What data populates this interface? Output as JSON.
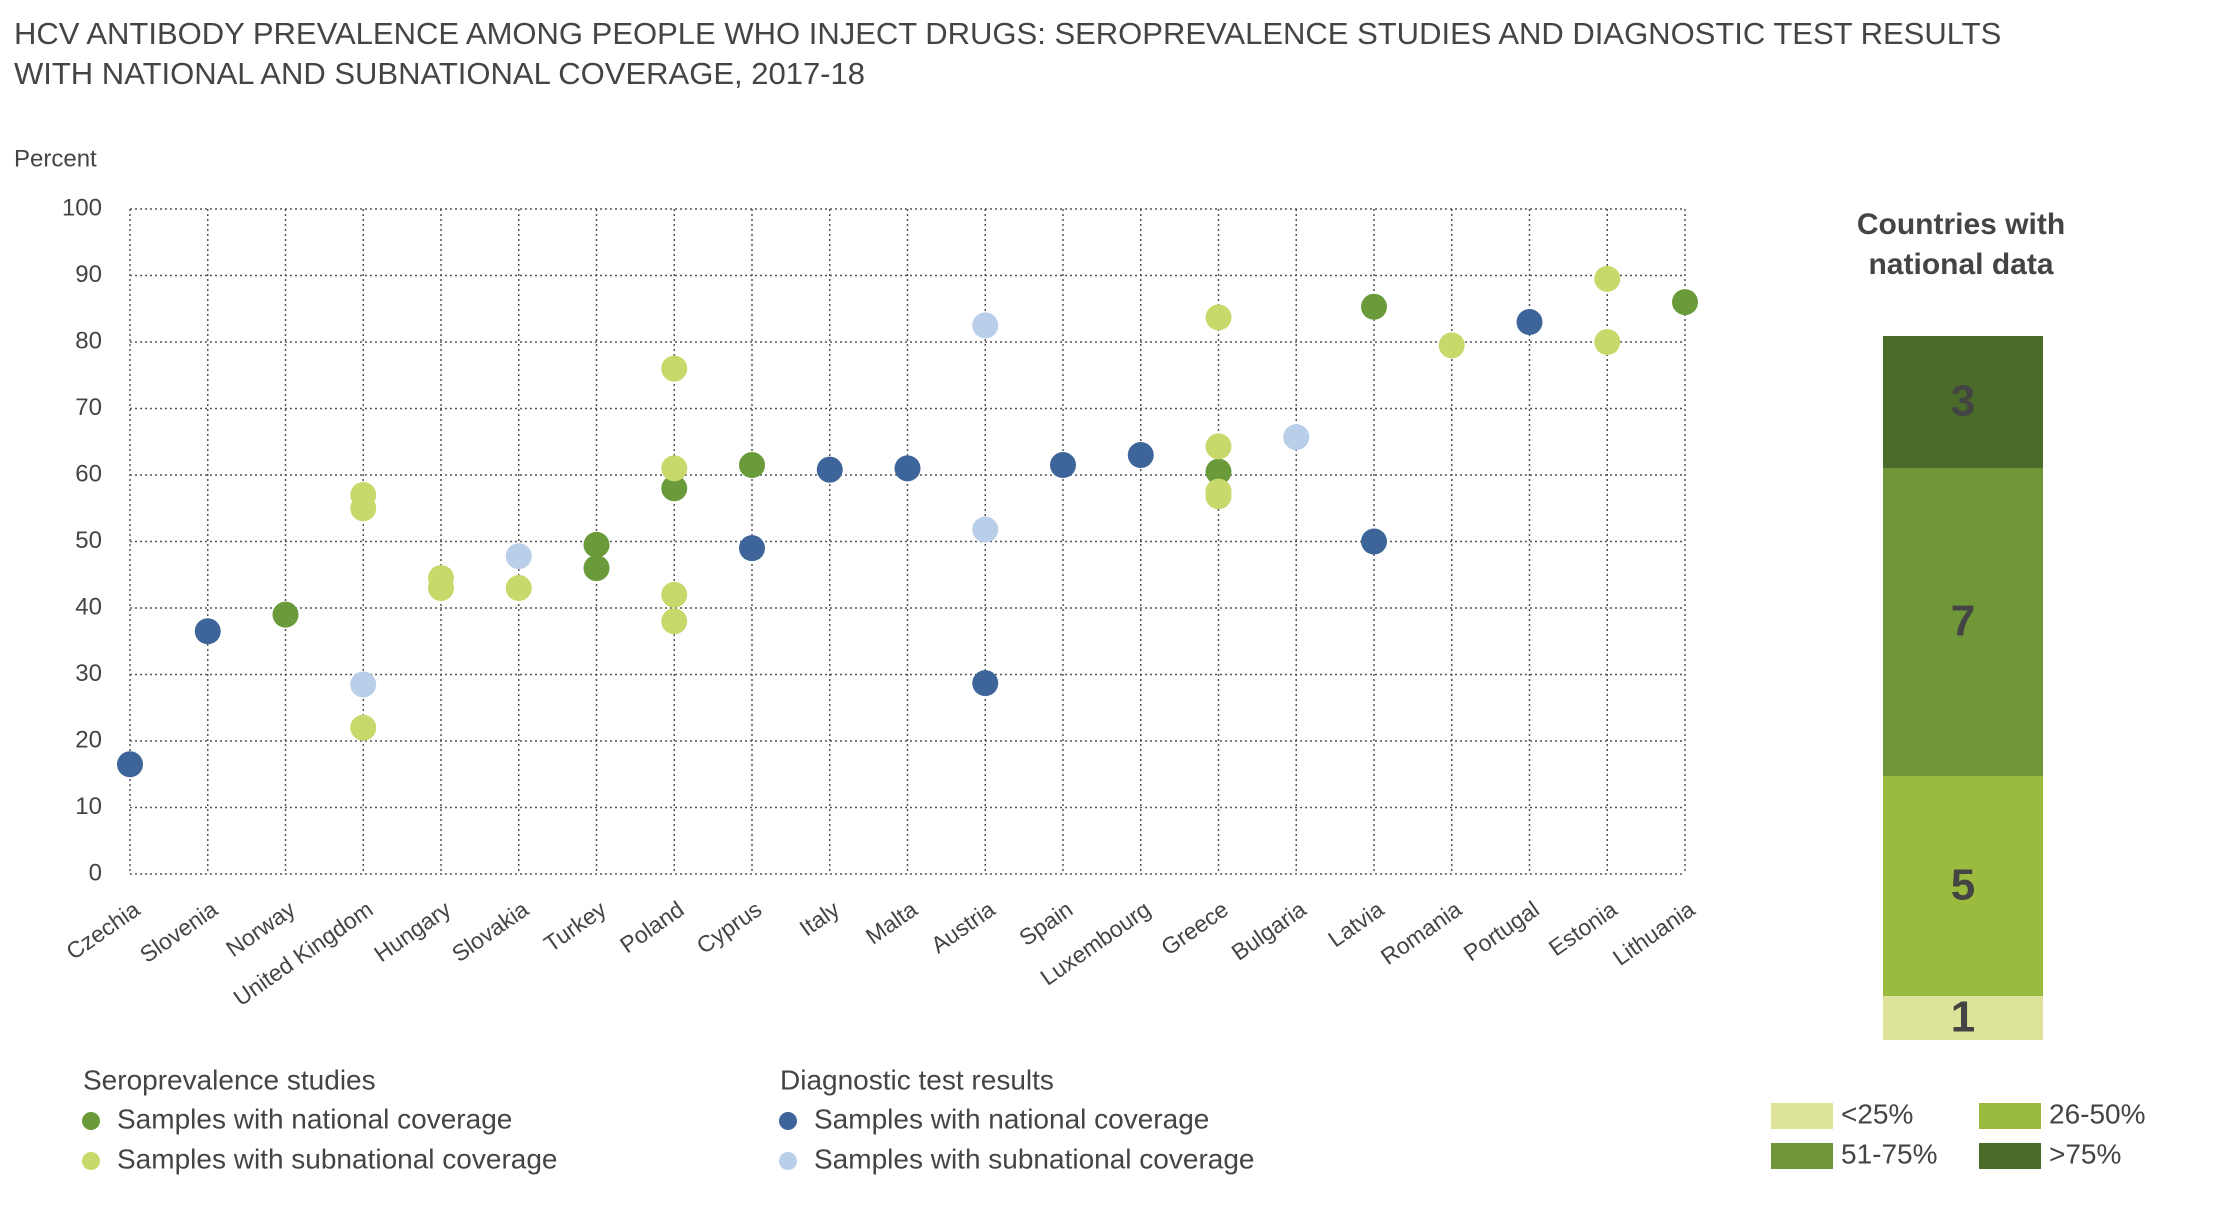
{
  "chart_data": [
    {
      "type": "scatter",
      "title": [
        "HCV ANTIBODY PREVALENCE AMONG PEOPLE WHO INJECT DRUGS: SEROPREVALENCE STUDIES AND DIAGNOSTIC TEST RESULTS",
        "WITH NATIONAL AND SUBNATIONAL COVERAGE, 2017-18"
      ],
      "y_label": "Percent",
      "categories": [
        "Czechia",
        "Slovenia",
        "Norway",
        "United Kingdom",
        "Hungary",
        "Slovakia",
        "Turkey",
        "Poland",
        "Cyprus",
        "Italy",
        "Malta",
        "Austria",
        "Spain",
        "Luxembourg",
        "Greece",
        "Bulgaria",
        "Latvia",
        "Romania",
        "Portugal",
        "Estonia",
        "Lithuania"
      ],
      "ylim": [
        0,
        100
      ],
      "yticks": [
        0,
        10,
        20,
        30,
        40,
        50,
        60,
        70,
        80,
        90,
        100
      ],
      "grid": true,
      "series": [
        {
          "group": "Seroprevalence studies",
          "name": "Samples with national coverage",
          "color": "#6a9a3a",
          "x": [
            "Norway",
            "Turkey",
            "Turkey",
            "Poland",
            "Cyprus",
            "Greece",
            "Latvia",
            "Lithuania"
          ],
          "values": [
            39,
            49.5,
            46,
            58,
            61.5,
            60.5,
            85.3,
            86
          ]
        },
        {
          "group": "Seroprevalence studies",
          "name": "Samples with subnational coverage",
          "color": "#c9d86a",
          "x": [
            "United Kingdom",
            "United Kingdom",
            "United Kingdom",
            "Hungary",
            "Hungary",
            "Slovakia",
            "Poland",
            "Poland",
            "Poland",
            "Poland",
            "Greece",
            "Greece",
            "Greece",
            "Greece",
            "Romania",
            "Estonia",
            "Estonia"
          ],
          "values": [
            57,
            55,
            22,
            44.5,
            43,
            43,
            76,
            61,
            42,
            38,
            83.7,
            64.3,
            57.5,
            56.8,
            79.5,
            89.5,
            80
          ]
        },
        {
          "group": "Diagnostic test results",
          "name": "Samples with national coverage",
          "color": "#3d6599",
          "x": [
            "Czechia",
            "Slovenia",
            "Cyprus",
            "Italy",
            "Malta",
            "Austria",
            "Spain",
            "Luxembourg",
            "Latvia",
            "Portugal"
          ],
          "values": [
            16.5,
            36.5,
            49,
            60.8,
            61,
            28.7,
            61.5,
            63,
            50,
            83
          ]
        },
        {
          "group": "Diagnostic test results",
          "name": "Samples with subnational coverage",
          "color": "#b9cfe9",
          "x": [
            "United Kingdom",
            "Slovakia",
            "Austria",
            "Austria",
            "Bulgaria"
          ],
          "values": [
            28.5,
            47.8,
            82.5,
            51.8,
            65.7
          ]
        }
      ]
    },
    {
      "type": "stacked_bar",
      "title": [
        "Countries with",
        "national data"
      ],
      "series": [
        {
          "name": "<25%",
          "color": "#dde39a",
          "values": [
            1
          ]
        },
        {
          "name": "26-50%",
          "color": "#9bbb3e",
          "values": [
            5
          ]
        },
        {
          "name": "51-75%",
          "color": "#6f9637",
          "values": [
            7
          ]
        },
        {
          "name": ">75%",
          "color": "#4a6b2a",
          "values": [
            3
          ]
        }
      ]
    }
  ]
}
